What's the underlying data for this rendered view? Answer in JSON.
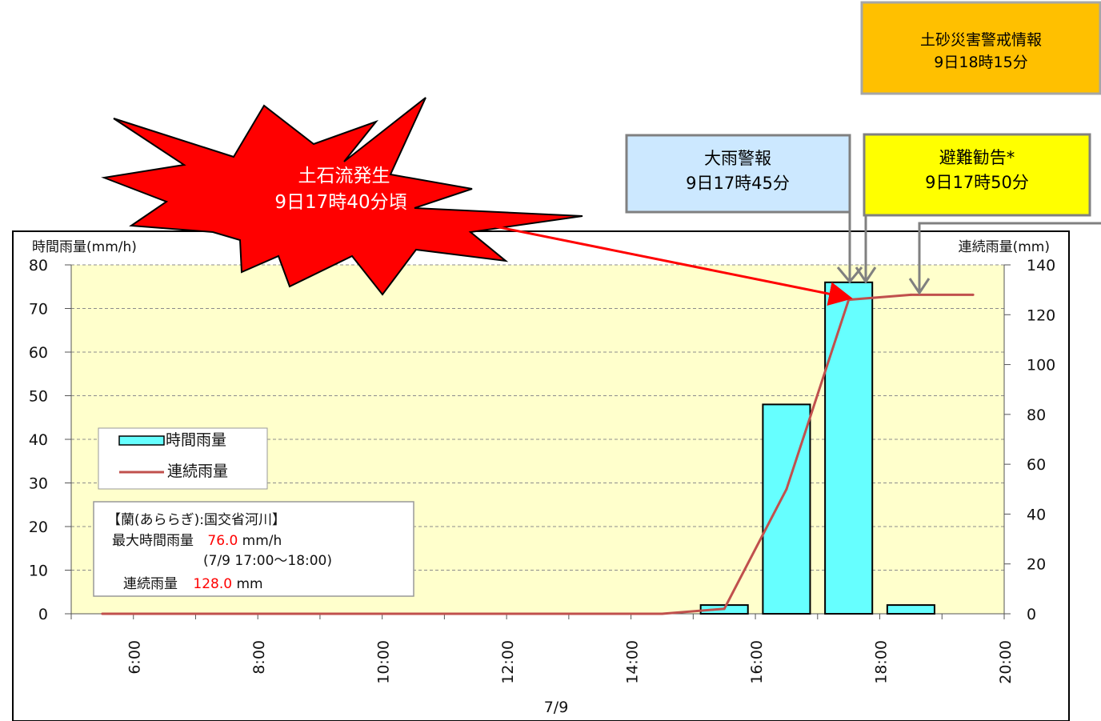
{
  "chart_data": {
    "type": "bar+line",
    "x_range": [
      "5:00",
      "20:00"
    ],
    "x_ticks": [
      "6:00",
      "8:00",
      "10:00",
      "12:00",
      "14:00",
      "16:00",
      "18:00",
      "20:00"
    ],
    "date_label": "7/9",
    "left_axis": {
      "label": "時間雨量(mm/h)",
      "ylim": [
        0,
        80
      ],
      "ticks": [
        "0",
        "10",
        "20",
        "30",
        "40",
        "50",
        "60",
        "70",
        "80"
      ]
    },
    "right_axis": {
      "label": "連続雨量(mm)",
      "ylim": [
        0,
        140
      ],
      "ticks": [
        "0",
        "20",
        "40",
        "60",
        "80",
        "100",
        "120",
        "140"
      ]
    },
    "series": [
      {
        "name": "時間雨量",
        "type": "bar",
        "color": "#66ffff",
        "points": [
          {
            "x": "15:00-16:00",
            "y": 2
          },
          {
            "x": "16:00-17:00",
            "y": 48
          },
          {
            "x": "17:00-18:00",
            "y": 76
          },
          {
            "x": "18:00-19:00",
            "y": 2
          }
        ]
      },
      {
        "name": "連続雨量",
        "type": "line",
        "axis": "right",
        "color": "#c0504d",
        "points": [
          {
            "x": "5:30",
            "y": 0
          },
          {
            "x": "14:30",
            "y": 0
          },
          {
            "x": "15:30",
            "y": 2
          },
          {
            "x": "16:30",
            "y": 50
          },
          {
            "x": "17:30",
            "y": 126
          },
          {
            "x": "18:30",
            "y": 128
          },
          {
            "x": "19:30",
            "y": 128
          }
        ]
      }
    ],
    "legend": {
      "position": "left",
      "items": [
        "時間雨量",
        "連続雨量"
      ]
    },
    "grid": true,
    "plot_background": "#ffffcc"
  },
  "info_box": {
    "station": "【蘭(あららぎ):国交省河川】",
    "max_label": "最大時間雨量",
    "max_value": "76.0",
    "max_unit": "mm/h",
    "period": "(7/9  17:00～18:00)",
    "cont_label": "連続雨量",
    "cont_value": "128.0",
    "cont_unit": "mm"
  },
  "annotations": {
    "debris_flow": {
      "line1": "土石流発生",
      "line2": "9日17時40分頃",
      "color": "#ff0000"
    },
    "heavy_rain_warning": {
      "line1": "大雨警報",
      "line2": "9日17時45分",
      "color": "#cce8ff"
    },
    "evacuation": {
      "line1": "避難勧告*",
      "line2": "9日17時50分",
      "color": "#ffff00"
    },
    "landslide_alert": {
      "line1": "土砂災害警戒情報",
      "line2": "9日18時15分",
      "color": "#ffc000"
    }
  }
}
